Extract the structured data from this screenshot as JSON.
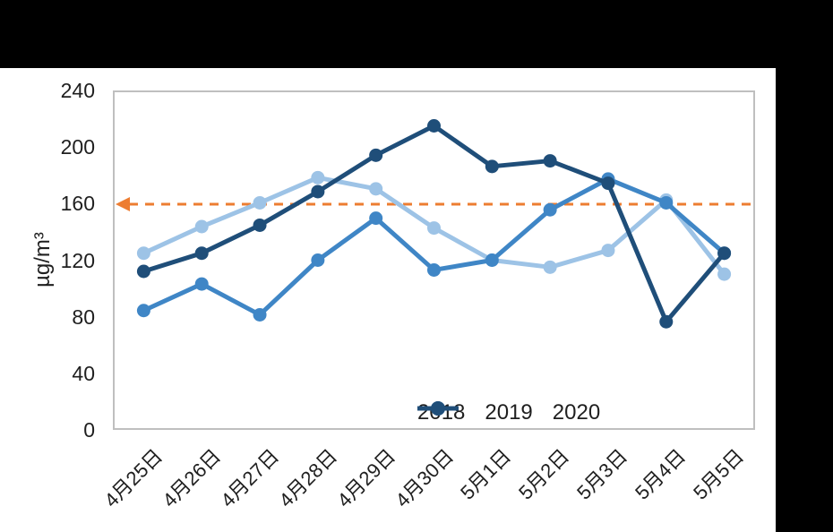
{
  "chart_data": {
    "type": "line",
    "title": "",
    "xlabel": "",
    "ylabel": "µg/m³",
    "ylim": [
      0,
      240
    ],
    "y_ticks": [
      0,
      40,
      80,
      120,
      160,
      200,
      240
    ],
    "grid": false,
    "legend_position": "bottom-right-inside",
    "categories": [
      "4月25日",
      "4月26日",
      "4月27日",
      "4月28日",
      "4月29日",
      "4月30日",
      "5月1日",
      "5月2日",
      "5月3日",
      "5月4日",
      "5月5日"
    ],
    "series": [
      {
        "name": "2018",
        "color": "#9DC3E6",
        "values": [
          125,
          144,
          161,
          179,
          171,
          143,
          120,
          115,
          127,
          163,
          110
        ]
      },
      {
        "name": "2019",
        "color": "#3F86C6",
        "values": [
          84,
          103,
          81,
          120,
          150,
          113,
          120,
          156,
          178,
          161,
          125
        ]
      },
      {
        "name": "2020",
        "color": "#1F4E79",
        "values": [
          112,
          125,
          145,
          169,
          195,
          216,
          187,
          191,
          175,
          76,
          125
        ]
      }
    ],
    "reference_line": {
      "value": 160,
      "color": "#ED7D31",
      "style": "dashed",
      "arrow": "left"
    }
  },
  "colors": {
    "page_background": "#000000",
    "chart_background": "#ffffff",
    "plot_border": "#BFBFBF",
    "text": "#1f1f1f"
  }
}
